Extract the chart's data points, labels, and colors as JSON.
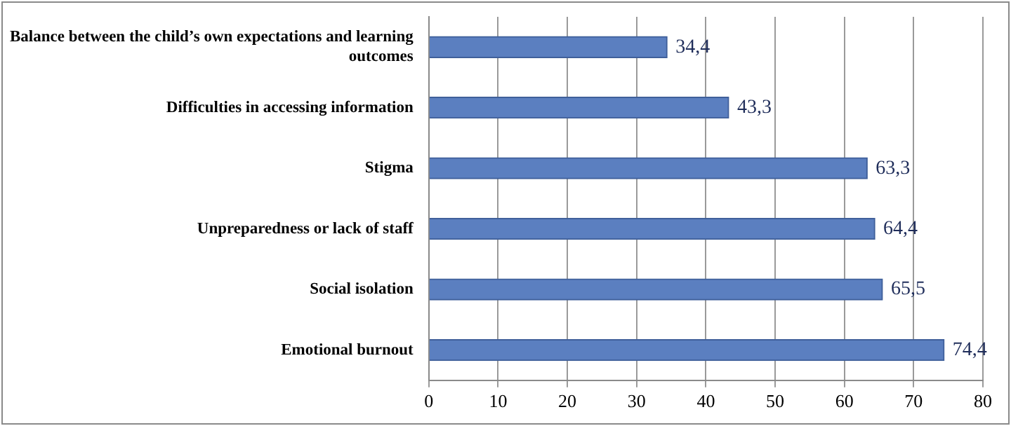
{
  "chart_data": {
    "type": "bar",
    "orientation": "horizontal",
    "categories": [
      "Balance between the child’s own expectations and learning outcomes",
      "Difficulties in accessing information",
      "Stigma",
      "Unpreparedness or lack of staff",
      "Social isolation",
      "Emotional burnout"
    ],
    "values": [
      34.4,
      43.3,
      63.3,
      64.4,
      65.5,
      74.4
    ],
    "value_labels": [
      "34,4",
      "43,3",
      "63,3",
      "64,4",
      "65,5",
      "74,4"
    ],
    "color": "#5b7fc0",
    "xlim": [
      0,
      80
    ],
    "xticks": [
      0,
      10,
      20,
      30,
      40,
      50,
      60,
      70,
      80
    ],
    "grid": "x",
    "legend": false
  }
}
